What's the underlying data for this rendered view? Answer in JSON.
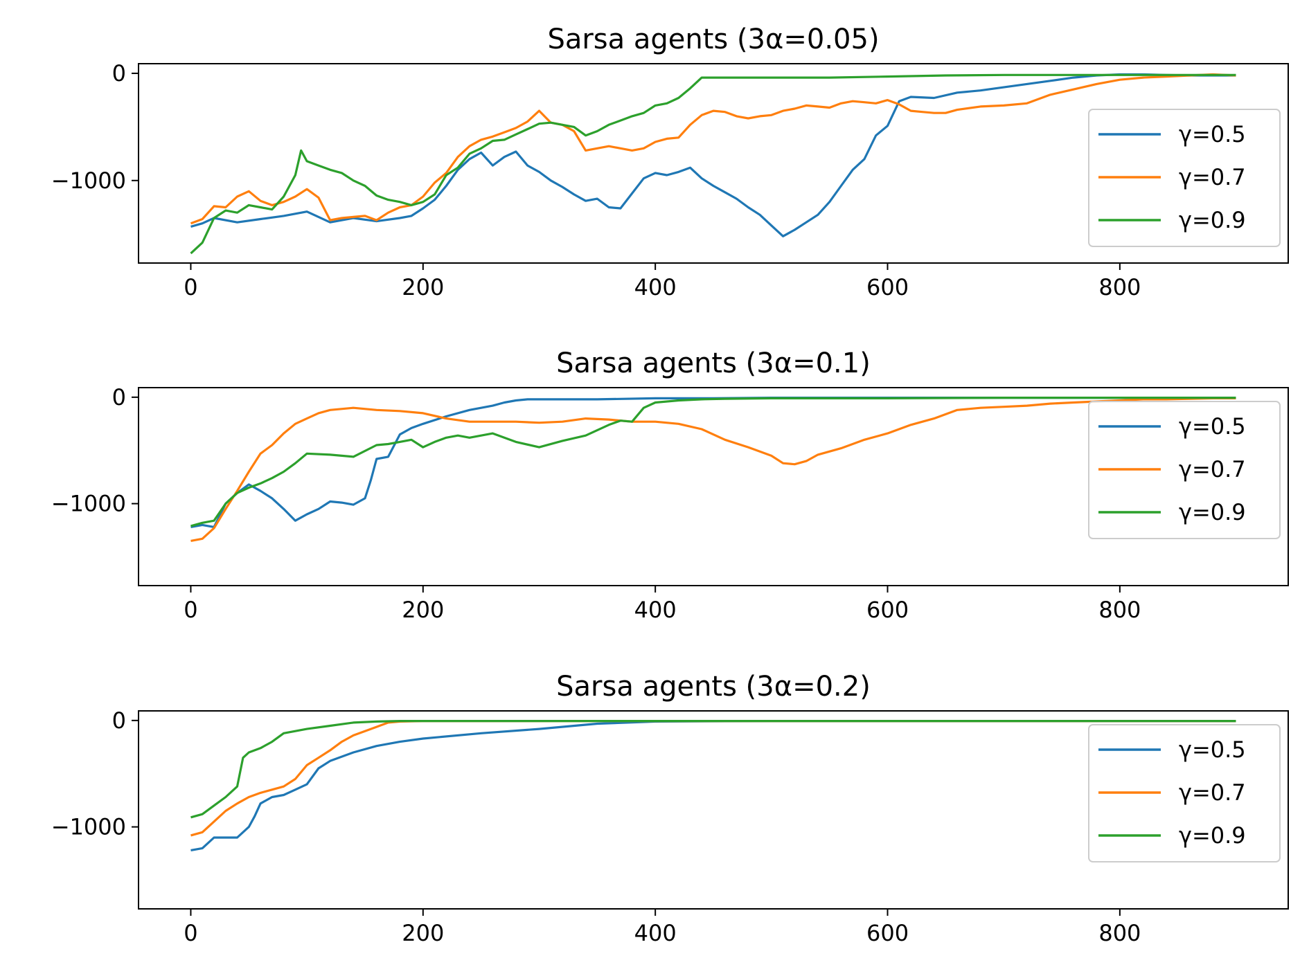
{
  "colors": {
    "g05": "#1f77b4",
    "g07": "#ff7f0e",
    "g09": "#2ca02c"
  },
  "chart_data": [
    {
      "type": "line",
      "title": "Sarsa agents (3α=0.05)",
      "xlabel": "",
      "ylabel": "",
      "xlim": [
        -45,
        945
      ],
      "ylim": [
        -1770,
        90
      ],
      "xticks": [
        0,
        200,
        400,
        600,
        800
      ],
      "xtick_labels": [
        "0",
        "200",
        "400",
        "600",
        "800"
      ],
      "yticks": [
        0,
        -1000
      ],
      "ytick_labels": [
        "0",
        "−1000"
      ],
      "legend": "right",
      "series": [
        {
          "name": "γ=0.5",
          "color": "#1f77b4",
          "x": [
            0,
            10,
            20,
            40,
            60,
            80,
            100,
            120,
            140,
            160,
            180,
            190,
            200,
            210,
            220,
            230,
            240,
            250,
            260,
            270,
            280,
            290,
            300,
            310,
            320,
            330,
            340,
            350,
            360,
            370,
            380,
            390,
            400,
            410,
            420,
            430,
            440,
            450,
            460,
            470,
            480,
            490,
            500,
            510,
            520,
            530,
            540,
            550,
            560,
            570,
            580,
            590,
            600,
            610,
            620,
            640,
            660,
            680,
            700,
            720,
            740,
            760,
            780,
            800,
            820,
            840,
            860,
            880,
            900
          ],
          "y": [
            -1430,
            -1400,
            -1350,
            -1390,
            -1360,
            -1330,
            -1290,
            -1390,
            -1350,
            -1380,
            -1350,
            -1330,
            -1260,
            -1180,
            -1050,
            -900,
            -800,
            -740,
            -860,
            -780,
            -730,
            -860,
            -920,
            -1000,
            -1060,
            -1130,
            -1190,
            -1170,
            -1250,
            -1260,
            -1120,
            -980,
            -930,
            -950,
            -920,
            -880,
            -980,
            -1050,
            -1110,
            -1170,
            -1250,
            -1320,
            -1420,
            -1520,
            -1460,
            -1390,
            -1320,
            -1200,
            -1050,
            -900,
            -800,
            -580,
            -490,
            -260,
            -220,
            -230,
            -180,
            -160,
            -130,
            -100,
            -70,
            -40,
            -20,
            -10,
            -10,
            -15,
            -20,
            -20,
            -20
          ]
        },
        {
          "name": "γ=0.7",
          "color": "#ff7f0e",
          "x": [
            0,
            10,
            20,
            30,
            40,
            50,
            60,
            70,
            80,
            90,
            100,
            110,
            120,
            130,
            140,
            150,
            160,
            170,
            180,
            190,
            200,
            210,
            220,
            230,
            240,
            250,
            260,
            270,
            280,
            290,
            300,
            310,
            320,
            330,
            340,
            350,
            360,
            370,
            380,
            390,
            400,
            410,
            420,
            430,
            440,
            450,
            460,
            470,
            480,
            490,
            500,
            510,
            520,
            530,
            540,
            550,
            560,
            570,
            580,
            590,
            600,
            610,
            620,
            630,
            640,
            650,
            660,
            680,
            700,
            720,
            740,
            760,
            780,
            800,
            820,
            840,
            860,
            880,
            900
          ],
          "y": [
            -1400,
            -1360,
            -1240,
            -1250,
            -1150,
            -1100,
            -1190,
            -1230,
            -1200,
            -1150,
            -1080,
            -1160,
            -1370,
            -1350,
            -1340,
            -1330,
            -1370,
            -1300,
            -1250,
            -1230,
            -1150,
            -1020,
            -930,
            -780,
            -680,
            -620,
            -590,
            -550,
            -510,
            -450,
            -350,
            -460,
            -480,
            -540,
            -720,
            -700,
            -680,
            -700,
            -720,
            -700,
            -640,
            -610,
            -600,
            -480,
            -390,
            -350,
            -360,
            -400,
            -420,
            -400,
            -390,
            -350,
            -330,
            -300,
            -310,
            -320,
            -280,
            -260,
            -270,
            -280,
            -250,
            -290,
            -350,
            -360,
            -370,
            -370,
            -340,
            -310,
            -300,
            -280,
            -200,
            -150,
            -100,
            -60,
            -40,
            -30,
            -20,
            -10,
            -20
          ]
        },
        {
          "name": "γ=0.9",
          "color": "#2ca02c",
          "x": [
            0,
            10,
            20,
            30,
            40,
            50,
            60,
            70,
            80,
            90,
            95,
            100,
            110,
            120,
            130,
            140,
            150,
            160,
            170,
            180,
            190,
            200,
            210,
            220,
            230,
            240,
            250,
            260,
            270,
            280,
            290,
            300,
            310,
            320,
            330,
            340,
            350,
            360,
            370,
            380,
            390,
            400,
            410,
            420,
            430,
            440,
            460,
            500,
            550,
            600,
            650,
            700,
            750,
            800,
            850,
            900
          ],
          "y": [
            -1680,
            -1580,
            -1350,
            -1280,
            -1300,
            -1230,
            -1250,
            -1270,
            -1150,
            -950,
            -720,
            -820,
            -860,
            -900,
            -930,
            -1000,
            -1050,
            -1140,
            -1180,
            -1200,
            -1230,
            -1200,
            -1130,
            -950,
            -880,
            -750,
            -700,
            -630,
            -620,
            -570,
            -520,
            -470,
            -460,
            -480,
            -500,
            -580,
            -540,
            -480,
            -440,
            -400,
            -370,
            -300,
            -280,
            -230,
            -140,
            -40,
            -40,
            -40,
            -40,
            -30,
            -20,
            -15,
            -15,
            -15,
            -15,
            -15
          ]
        }
      ]
    },
    {
      "type": "line",
      "title": "Sarsa agents (3α=0.1)",
      "xlabel": "",
      "ylabel": "",
      "xlim": [
        -45,
        945
      ],
      "ylim": [
        -1770,
        90
      ],
      "xticks": [
        0,
        200,
        400,
        600,
        800
      ],
      "xtick_labels": [
        "0",
        "200",
        "400",
        "600",
        "800"
      ],
      "yticks": [
        0,
        -1000
      ],
      "ytick_labels": [
        "0",
        "−1000"
      ],
      "legend": "right",
      "series": [
        {
          "name": "γ=0.5",
          "color": "#1f77b4",
          "x": [
            0,
            10,
            20,
            30,
            40,
            50,
            60,
            70,
            80,
            90,
            100,
            110,
            120,
            130,
            140,
            150,
            155,
            160,
            170,
            180,
            190,
            200,
            220,
            240,
            260,
            270,
            280,
            290,
            300,
            350,
            400,
            450,
            500,
            600,
            700,
            800,
            900
          ],
          "y": [
            -1220,
            -1200,
            -1220,
            -1000,
            -900,
            -820,
            -880,
            -950,
            -1050,
            -1160,
            -1100,
            -1050,
            -980,
            -990,
            -1010,
            -950,
            -780,
            -580,
            -560,
            -350,
            -290,
            -250,
            -180,
            -120,
            -80,
            -50,
            -30,
            -20,
            -20,
            -20,
            -10,
            -10,
            -5,
            -5,
            -5,
            -5,
            -5
          ]
        },
        {
          "name": "γ=0.7",
          "color": "#ff7f0e",
          "x": [
            0,
            10,
            20,
            30,
            40,
            50,
            60,
            70,
            80,
            90,
            100,
            110,
            120,
            140,
            160,
            180,
            200,
            220,
            240,
            260,
            280,
            300,
            320,
            340,
            360,
            380,
            400,
            420,
            440,
            460,
            480,
            500,
            510,
            520,
            530,
            540,
            560,
            580,
            600,
            620,
            640,
            660,
            680,
            700,
            720,
            740,
            760,
            780,
            800,
            820,
            840,
            860,
            880,
            900
          ],
          "y": [
            -1350,
            -1330,
            -1230,
            -1050,
            -880,
            -700,
            -530,
            -450,
            -340,
            -250,
            -200,
            -150,
            -120,
            -100,
            -120,
            -130,
            -150,
            -200,
            -230,
            -230,
            -230,
            -240,
            -230,
            -200,
            -210,
            -230,
            -230,
            -250,
            -300,
            -400,
            -470,
            -550,
            -620,
            -630,
            -600,
            -540,
            -480,
            -400,
            -340,
            -260,
            -200,
            -120,
            -100,
            -90,
            -80,
            -60,
            -50,
            -40,
            -30,
            -20,
            -20,
            -15,
            -10,
            -10
          ]
        },
        {
          "name": "γ=0.9",
          "color": "#2ca02c",
          "x": [
            0,
            10,
            20,
            30,
            40,
            50,
            60,
            70,
            80,
            90,
            100,
            120,
            140,
            160,
            170,
            180,
            190,
            200,
            210,
            220,
            230,
            240,
            260,
            280,
            300,
            320,
            340,
            360,
            370,
            380,
            390,
            400,
            420,
            440,
            460,
            500,
            600,
            700,
            800,
            900
          ],
          "y": [
            -1210,
            -1180,
            -1160,
            -1000,
            -900,
            -850,
            -810,
            -760,
            -700,
            -620,
            -530,
            -540,
            -560,
            -450,
            -440,
            -420,
            -400,
            -470,
            -420,
            -380,
            -360,
            -380,
            -340,
            -420,
            -470,
            -410,
            -360,
            -260,
            -220,
            -230,
            -100,
            -50,
            -30,
            -20,
            -15,
            -10,
            -10,
            -5,
            -5,
            -5
          ]
        }
      ]
    },
    {
      "type": "line",
      "title": "Sarsa agents (3α=0.2)",
      "xlabel": "",
      "ylabel": "",
      "xlim": [
        -45,
        945
      ],
      "ylim": [
        -1770,
        90
      ],
      "xticks": [
        0,
        200,
        400,
        600,
        800
      ],
      "xtick_labels": [
        "0",
        "200",
        "400",
        "600",
        "800"
      ],
      "yticks": [
        0,
        -1000
      ],
      "ytick_labels": [
        "0",
        "−1000"
      ],
      "legend": "right",
      "series": [
        {
          "name": "γ=0.5",
          "color": "#1f77b4",
          "x": [
            0,
            10,
            20,
            30,
            40,
            50,
            55,
            60,
            70,
            80,
            90,
            100,
            110,
            120,
            140,
            160,
            180,
            200,
            250,
            300,
            350,
            400,
            500,
            600,
            700,
            800,
            900
          ],
          "y": [
            -1220,
            -1200,
            -1100,
            -1100,
            -1100,
            -1000,
            -900,
            -780,
            -720,
            -700,
            -650,
            -600,
            -450,
            -380,
            -300,
            -240,
            -200,
            -170,
            -120,
            -80,
            -30,
            -10,
            -5,
            -5,
            -5,
            -5,
            -5
          ]
        },
        {
          "name": "γ=0.7",
          "color": "#ff7f0e",
          "x": [
            0,
            10,
            20,
            30,
            40,
            50,
            60,
            70,
            80,
            90,
            100,
            110,
            120,
            130,
            140,
            150,
            160,
            170,
            180,
            200,
            250,
            300,
            400,
            500,
            600,
            700,
            800,
            900
          ],
          "y": [
            -1080,
            -1050,
            -950,
            -850,
            -780,
            -720,
            -680,
            -650,
            -620,
            -550,
            -420,
            -350,
            -280,
            -200,
            -140,
            -100,
            -60,
            -20,
            -10,
            -5,
            -5,
            -5,
            -5,
            -5,
            -5,
            -5,
            -5,
            -5
          ]
        },
        {
          "name": "γ=0.9",
          "color": "#2ca02c",
          "x": [
            0,
            10,
            20,
            30,
            40,
            45,
            50,
            55,
            60,
            70,
            80,
            90,
            100,
            120,
            140,
            160,
            180,
            200,
            300,
            400,
            500,
            600,
            700,
            800,
            900
          ],
          "y": [
            -910,
            -880,
            -800,
            -720,
            -620,
            -350,
            -300,
            -280,
            -260,
            -200,
            -120,
            -100,
            -80,
            -50,
            -20,
            -10,
            -5,
            -5,
            -5,
            -5,
            -5,
            -5,
            -5,
            -5,
            -5
          ]
        }
      ]
    }
  ]
}
